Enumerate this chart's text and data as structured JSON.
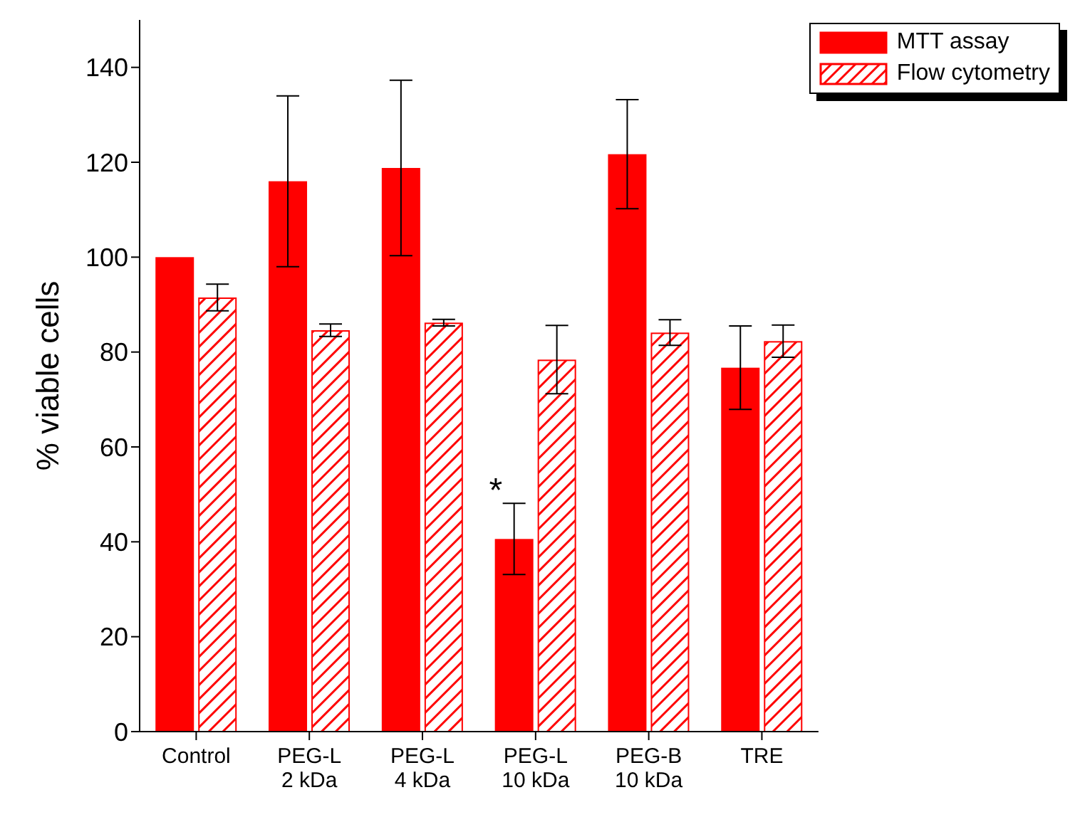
{
  "chart_data": {
    "type": "bar",
    "ylabel": "% viable cells",
    "categories": [
      "Control",
      "PEG-L\n2 kDa",
      "PEG-L\n4 kDa",
      "PEG-L\n10 kDa",
      "PEG-B\n10 kDa",
      "TRE"
    ],
    "series": [
      {
        "name": "MTT assay",
        "color": "#ff0000",
        "values": [
          100,
          116,
          118.8,
          40.6,
          121.7,
          76.7
        ],
        "errors": [
          null,
          18,
          18.5,
          7.5,
          11.5,
          8.8
        ]
      },
      {
        "name": "Flow cytometry",
        "color": "#ff0000",
        "values": [
          91.5,
          84.6,
          86.2,
          78.4,
          84.1,
          82.3
        ],
        "errors": [
          2.8,
          1.3,
          0.7,
          7.2,
          2.7,
          3.4
        ]
      }
    ],
    "ylim": [
      0,
      150
    ],
    "yticks": [
      0,
      20,
      40,
      60,
      80,
      100,
      120,
      140
    ],
    "grid": false,
    "legend": "top right",
    "annotations": [
      {
        "text": "*",
        "x": "PEG-L\n10 kDa",
        "y": 51
      }
    ]
  }
}
